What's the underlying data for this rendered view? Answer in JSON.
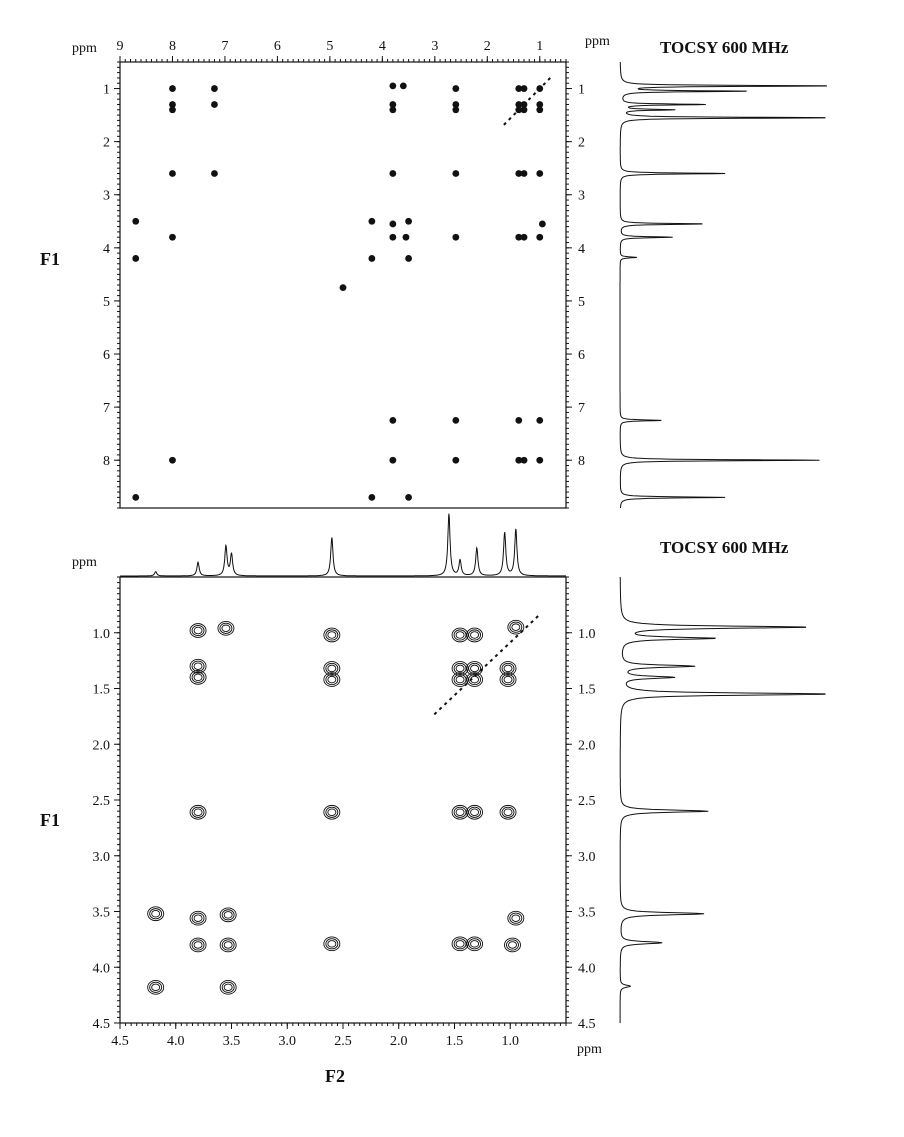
{
  "chart_data": [
    {
      "type": "heatmap",
      "title": "TOCSY 600 MHz",
      "xlabel": "ppm",
      "ylabel": "F1",
      "xlim": [
        9,
        0.5
      ],
      "ylim": [
        0.5,
        8.9
      ],
      "x_ticks": [
        "9",
        "8",
        "7",
        "6",
        "5",
        "4",
        "3",
        "2",
        "1"
      ],
      "y_ticks": [
        "1",
        "2",
        "3",
        "4",
        "5",
        "6",
        "7",
        "8"
      ],
      "y_unit": "ppm",
      "diagonal": [
        [
          0.8,
          0.8
        ],
        [
          1.7,
          1.7
        ]
      ],
      "cross_peaks": [
        {
          "x": 8.0,
          "y": 1.0
        },
        {
          "x": 8.0,
          "y": 1.3
        },
        {
          "x": 8.0,
          "y": 1.4
        },
        {
          "x": 7.2,
          "y": 1.0
        },
        {
          "x": 7.2,
          "y": 1.3
        },
        {
          "x": 3.8,
          "y": 0.95
        },
        {
          "x": 3.6,
          "y": 0.95
        },
        {
          "x": 3.8,
          "y": 1.3
        },
        {
          "x": 3.8,
          "y": 1.4
        },
        {
          "x": 2.6,
          "y": 1.0
        },
        {
          "x": 2.6,
          "y": 1.3
        },
        {
          "x": 2.6,
          "y": 1.4
        },
        {
          "x": 1.4,
          "y": 1.0
        },
        {
          "x": 1.3,
          "y": 1.0
        },
        {
          "x": 1.0,
          "y": 1.0
        },
        {
          "x": 1.4,
          "y": 1.3
        },
        {
          "x": 1.3,
          "y": 1.3
        },
        {
          "x": 1.4,
          "y": 1.4
        },
        {
          "x": 1.3,
          "y": 1.4
        },
        {
          "x": 1.0,
          "y": 1.3
        },
        {
          "x": 1.0,
          "y": 1.4
        },
        {
          "x": 8.0,
          "y": 2.6
        },
        {
          "x": 7.2,
          "y": 2.6
        },
        {
          "x": 3.8,
          "y": 2.6
        },
        {
          "x": 2.6,
          "y": 2.6
        },
        {
          "x": 1.4,
          "y": 2.6
        },
        {
          "x": 1.3,
          "y": 2.6
        },
        {
          "x": 1.0,
          "y": 2.6
        },
        {
          "x": 8.7,
          "y": 3.5
        },
        {
          "x": 4.2,
          "y": 3.5
        },
        {
          "x": 3.5,
          "y": 3.5
        },
        {
          "x": 3.8,
          "y": 3.55
        },
        {
          "x": 0.95,
          "y": 3.55
        },
        {
          "x": 8.0,
          "y": 3.8
        },
        {
          "x": 3.8,
          "y": 3.8
        },
        {
          "x": 3.55,
          "y": 3.8
        },
        {
          "x": 2.6,
          "y": 3.8
        },
        {
          "x": 1.4,
          "y": 3.8
        },
        {
          "x": 1.3,
          "y": 3.8
        },
        {
          "x": 1.0,
          "y": 3.8
        },
        {
          "x": 8.7,
          "y": 4.2
        },
        {
          "x": 4.2,
          "y": 4.2
        },
        {
          "x": 3.5,
          "y": 4.2
        },
        {
          "x": 4.75,
          "y": 4.75
        },
        {
          "x": 3.8,
          "y": 7.25
        },
        {
          "x": 2.6,
          "y": 7.25
        },
        {
          "x": 1.4,
          "y": 7.25
        },
        {
          "x": 1.0,
          "y": 7.25
        },
        {
          "x": 8.0,
          "y": 8.0
        },
        {
          "x": 3.8,
          "y": 8.0
        },
        {
          "x": 2.6,
          "y": 8.0
        },
        {
          "x": 1.4,
          "y": 8.0
        },
        {
          "x": 1.3,
          "y": 8.0
        },
        {
          "x": 1.0,
          "y": 8.0
        },
        {
          "x": 8.7,
          "y": 8.7
        },
        {
          "x": 4.2,
          "y": 8.7
        },
        {
          "x": 3.5,
          "y": 8.7
        }
      ],
      "f1_projection_peaks": [
        {
          "ppm": 0.95,
          "intensity": 1.0
        },
        {
          "ppm": 1.05,
          "intensity": 0.6
        },
        {
          "ppm": 1.3,
          "intensity": 0.4
        },
        {
          "ppm": 1.4,
          "intensity": 0.25
        },
        {
          "ppm": 1.55,
          "intensity": 1.0
        },
        {
          "ppm": 2.6,
          "intensity": 0.5
        },
        {
          "ppm": 3.55,
          "intensity": 0.4
        },
        {
          "ppm": 3.8,
          "intensity": 0.25
        },
        {
          "ppm": 4.18,
          "intensity": 0.08
        },
        {
          "ppm": 7.25,
          "intensity": 0.2
        },
        {
          "ppm": 8.0,
          "intensity": 0.95
        },
        {
          "ppm": 8.7,
          "intensity": 0.5
        }
      ]
    },
    {
      "type": "heatmap",
      "title": "TOCSY 600 MHz",
      "xlabel": "F2",
      "ylabel": "F1",
      "x_unit": "ppm",
      "y_unit": "ppm",
      "xlim": [
        4.5,
        0.5
      ],
      "ylim": [
        0.5,
        4.5
      ],
      "x_ticks": [
        "4.5",
        "4.0",
        "3.5",
        "3.0",
        "2.5",
        "2.0",
        "1.5",
        "1.0"
      ],
      "y_ticks": [
        "1.0",
        "1.5",
        "2.0",
        "2.5",
        "3.0",
        "3.5",
        "4.0",
        "4.5"
      ],
      "diagonal": [
        [
          0.75,
          0.85
        ],
        [
          1.7,
          1.75
        ]
      ],
      "cross_peaks": [
        {
          "x": 3.8,
          "y": 0.98
        },
        {
          "x": 3.55,
          "y": 0.96
        },
        {
          "x": 3.8,
          "y": 1.3
        },
        {
          "x": 3.8,
          "y": 1.4
        },
        {
          "x": 2.6,
          "y": 1.02
        },
        {
          "x": 2.6,
          "y": 1.32
        },
        {
          "x": 2.6,
          "y": 1.42
        },
        {
          "x": 1.45,
          "y": 1.02
        },
        {
          "x": 1.32,
          "y": 1.02
        },
        {
          "x": 1.45,
          "y": 1.32
        },
        {
          "x": 1.32,
          "y": 1.32
        },
        {
          "x": 1.45,
          "y": 1.42
        },
        {
          "x": 1.32,
          "y": 1.42
        },
        {
          "x": 1.02,
          "y": 1.32
        },
        {
          "x": 1.02,
          "y": 1.42
        },
        {
          "x": 0.95,
          "y": 0.95
        },
        {
          "x": 3.8,
          "y": 2.61
        },
        {
          "x": 2.6,
          "y": 2.61
        },
        {
          "x": 1.45,
          "y": 2.61
        },
        {
          "x": 1.32,
          "y": 2.61
        },
        {
          "x": 1.02,
          "y": 2.61
        },
        {
          "x": 4.18,
          "y": 3.52
        },
        {
          "x": 3.8,
          "y": 3.56
        },
        {
          "x": 3.53,
          "y": 3.53
        },
        {
          "x": 0.95,
          "y": 3.56
        },
        {
          "x": 3.8,
          "y": 3.8
        },
        {
          "x": 3.53,
          "y": 3.8
        },
        {
          "x": 2.6,
          "y": 3.79
        },
        {
          "x": 1.45,
          "y": 3.79
        },
        {
          "x": 1.32,
          "y": 3.79
        },
        {
          "x": 0.98,
          "y": 3.8
        },
        {
          "x": 4.18,
          "y": 4.18
        },
        {
          "x": 3.53,
          "y": 4.18
        }
      ],
      "f2_projection_peaks": [
        {
          "ppm": 4.18,
          "intensity": 0.07
        },
        {
          "ppm": 3.8,
          "intensity": 0.22
        },
        {
          "ppm": 3.55,
          "intensity": 0.48
        },
        {
          "ppm": 3.5,
          "intensity": 0.35
        },
        {
          "ppm": 2.6,
          "intensity": 0.62
        },
        {
          "ppm": 1.55,
          "intensity": 1.0
        },
        {
          "ppm": 1.45,
          "intensity": 0.25
        },
        {
          "ppm": 1.3,
          "intensity": 0.45
        },
        {
          "ppm": 1.05,
          "intensity": 0.7
        },
        {
          "ppm": 0.95,
          "intensity": 0.75
        }
      ],
      "f1_projection_peaks": [
        {
          "ppm": 0.95,
          "intensity": 0.9
        },
        {
          "ppm": 1.05,
          "intensity": 0.45
        },
        {
          "ppm": 1.3,
          "intensity": 0.35
        },
        {
          "ppm": 1.4,
          "intensity": 0.25
        },
        {
          "ppm": 1.55,
          "intensity": 1.0
        },
        {
          "ppm": 2.6,
          "intensity": 0.42
        },
        {
          "ppm": 3.52,
          "intensity": 0.4
        },
        {
          "ppm": 3.78,
          "intensity": 0.2
        },
        {
          "ppm": 4.17,
          "intensity": 0.05
        }
      ]
    }
  ]
}
